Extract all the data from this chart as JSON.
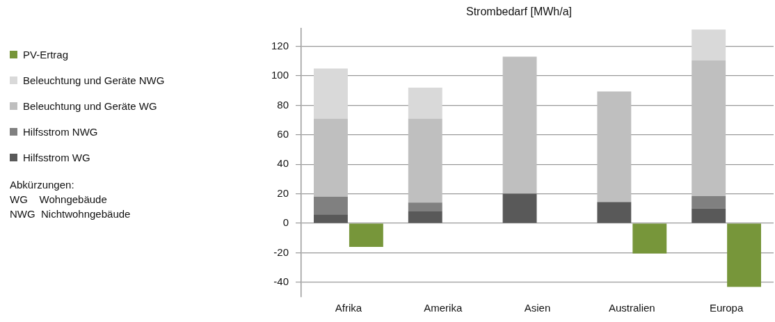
{
  "chart_data": {
    "type": "bar",
    "title": "Strombedarf [MWh/a]",
    "stacked": true,
    "categories": [
      "Afrika",
      "Amerika",
      "Asien",
      "Australien",
      "Europa"
    ],
    "series": [
      {
        "name": "Hilfsstrom WG",
        "color": "#595959",
        "values": [
          6,
          8,
          20,
          14.4,
          10
        ]
      },
      {
        "name": "Hilfsstrom NWG",
        "color": "#808080",
        "values": [
          12,
          6,
          null,
          null,
          8.4
        ]
      },
      {
        "name": "Beleuchtung und Geräte WG",
        "color": "#bfbfbf",
        "values": [
          53,
          57,
          93,
          75,
          92
        ]
      },
      {
        "name": "Beleuchtung und Geräte NWG",
        "color": "#d9d9d9",
        "values": [
          34,
          21,
          null,
          null,
          21
        ]
      },
      {
        "name": "PV-Ertrag",
        "color": "#77963a",
        "values": [
          -16,
          null,
          null,
          -20.5,
          -43.2
        ]
      }
    ],
    "ylim": [
      -50,
      132
    ],
    "yticks": [
      -40,
      -20,
      0,
      20,
      40,
      60,
      80,
      100,
      120
    ],
    "grid": "y",
    "legend": "left",
    "annotations": [
      "Abkürzungen:",
      "WG    Wohngebäude",
      "NWG  Nichtwohngebäude"
    ]
  }
}
